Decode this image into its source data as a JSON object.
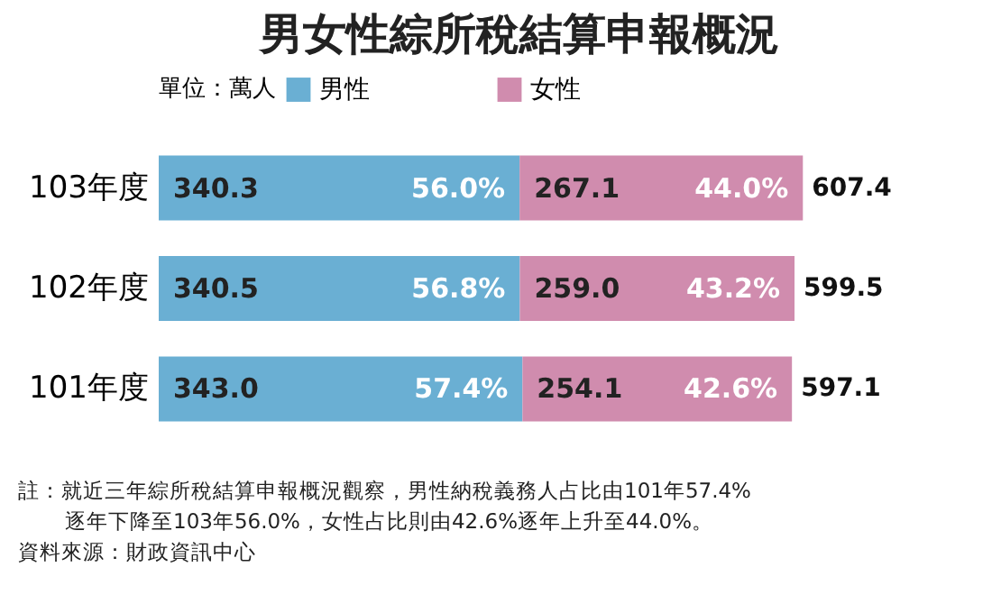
{
  "chart_data": {
    "type": "bar",
    "orientation": "horizontal",
    "stacked": true,
    "title": "男女性綜所稅結算申報概況",
    "legend_title": "單位：萬人",
    "legend": "top",
    "categories": [
      "103年度",
      "102年度",
      "101年度"
    ],
    "series": [
      {
        "name": "男性",
        "color": "#6aafd3",
        "values": [
          340.3,
          340.5,
          343.0
        ],
        "value_labels": [
          "340.3",
          "340.5",
          "343.0"
        ]
      },
      {
        "name": "女性",
        "color": "#d08cae",
        "values": [
          267.1,
          259.0,
          254.1
        ],
        "value_labels": [
          "267.1",
          "259.0",
          "254.1"
        ]
      }
    ],
    "data_labels": true,
    "totals": [
      "607.4",
      "599.5",
      "597.1"
    ],
    "annotations": [
      {
        "text": "56.0%",
        "x": 340.3,
        "y": "103年度"
      },
      {
        "text": "56.8%",
        "x": 340.5,
        "y": "102年度"
      },
      {
        "text": "57.4%",
        "x": 343.0,
        "y": "101年度"
      },
      {
        "text": "44.0%",
        "x": 607.4,
        "y": "103年度"
      },
      {
        "text": "43.2%",
        "x": 599.5,
        "y": "102年度"
      },
      {
        "text": "42.6%",
        "x": 597.1,
        "y": "101年度"
      },
      "註：就近三年綜所稅結算申報概況觀察，男性納稅義務人占比由101年57.4%逐年下降至103年56.0%，女性占比則由42.6%逐年上升至44.0%。",
      "資料來源：財政資訊中心"
    ]
  }
}
